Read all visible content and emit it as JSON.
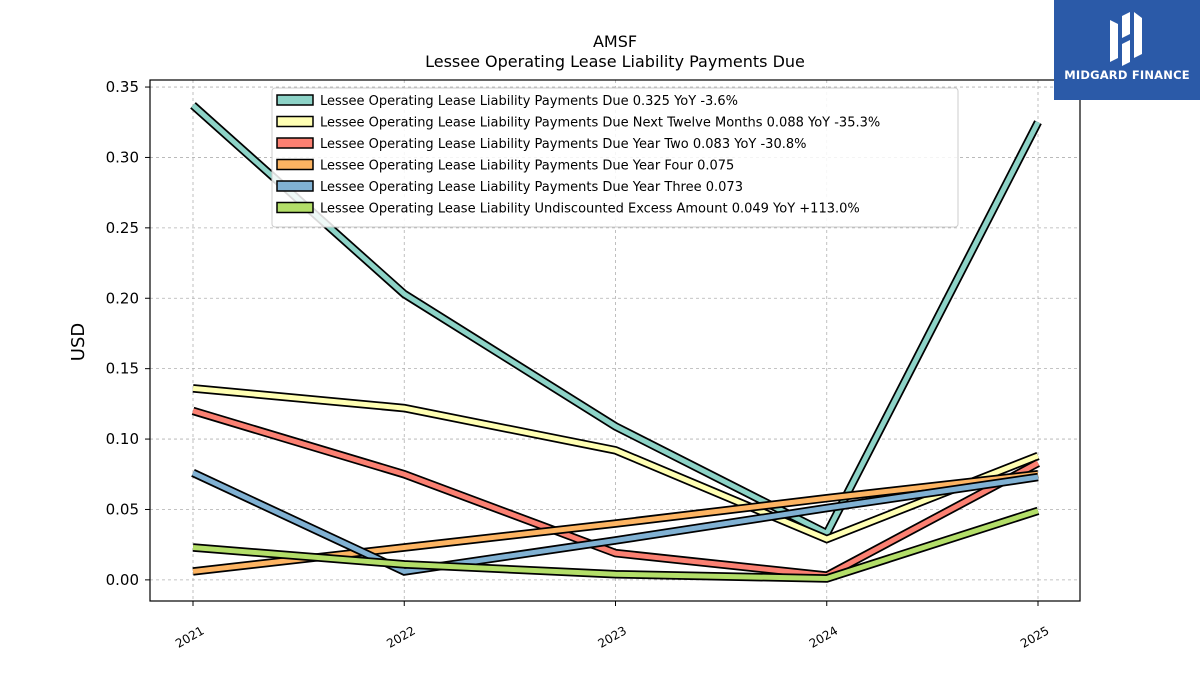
{
  "logo": {
    "text": "MIDGARD FINANCE",
    "icon": "midgard-logo-icon",
    "color": "#2b5aa8"
  },
  "chart_data": {
    "type": "line",
    "title": "AMSF",
    "subtitle": "Lessee Operating Lease Liability Payments Due",
    "xlabel": "",
    "ylabel": "USD",
    "ylim": [
      -0.015,
      0.355
    ],
    "yticks": [
      "0.00",
      "0.05",
      "0.10",
      "0.15",
      "0.20",
      "0.25",
      "0.30",
      "0.35"
    ],
    "ytick_values": [
      0,
      0.05,
      0.1,
      0.15,
      0.2,
      0.25,
      0.3,
      0.35
    ],
    "categories": [
      "2021",
      "2022",
      "2023",
      "2024",
      "2025"
    ],
    "grid": true,
    "legend_position": "top-center",
    "series": [
      {
        "name": "Lessee Operating Lease Liability Payments Due",
        "legend": "Lessee Operating Lease Liability Payments Due  0.325 YoY -3.6%",
        "color": "#8dd3c7",
        "values": [
          0.337,
          0.203,
          0.109,
          0.033,
          0.325
        ]
      },
      {
        "name": "Lessee Operating Lease Liability Payments Due Next Twelve Months",
        "legend": "Lessee Operating Lease Liability Payments Due Next Twelve Months  0.088 YoY -35.3%",
        "color": "#ffffb3",
        "values": [
          0.136,
          0.122,
          0.092,
          0.029,
          0.088
        ]
      },
      {
        "name": "Lessee Operating Lease Liability Payments Due Year Two",
        "legend": "Lessee Operating Lease Liability Payments Due Year Two  0.083 YoY -30.8%",
        "color": "#fb8072",
        "values": [
          0.12,
          0.075,
          0.019,
          0.003,
          0.083
        ]
      },
      {
        "name": "Lessee Operating Lease Liability Payments Due Year Four",
        "legend": "Lessee Operating Lease Liability Payments Due Year Four  0.075",
        "color": "#fdb462",
        "values": [
          0.006,
          0.023,
          0.04,
          0.058,
          0.075
        ]
      },
      {
        "name": "Lessee Operating Lease Liability Payments Due Year Three",
        "legend": "Lessee Operating Lease Liability Payments Due Year Three  0.073",
        "color": "#80b1d3",
        "values": [
          0.076,
          0.006,
          0.028,
          0.051,
          0.073
        ]
      },
      {
        "name": "Lessee Operating Lease Liability Undiscounted Excess Amount",
        "legend": "Lessee Operating Lease Liability Undiscounted Excess Amount  0.049 YoY +113.0%",
        "color": "#b3de69",
        "values": [
          0.023,
          0.011,
          0.004,
          0.001,
          0.049
        ]
      }
    ]
  }
}
